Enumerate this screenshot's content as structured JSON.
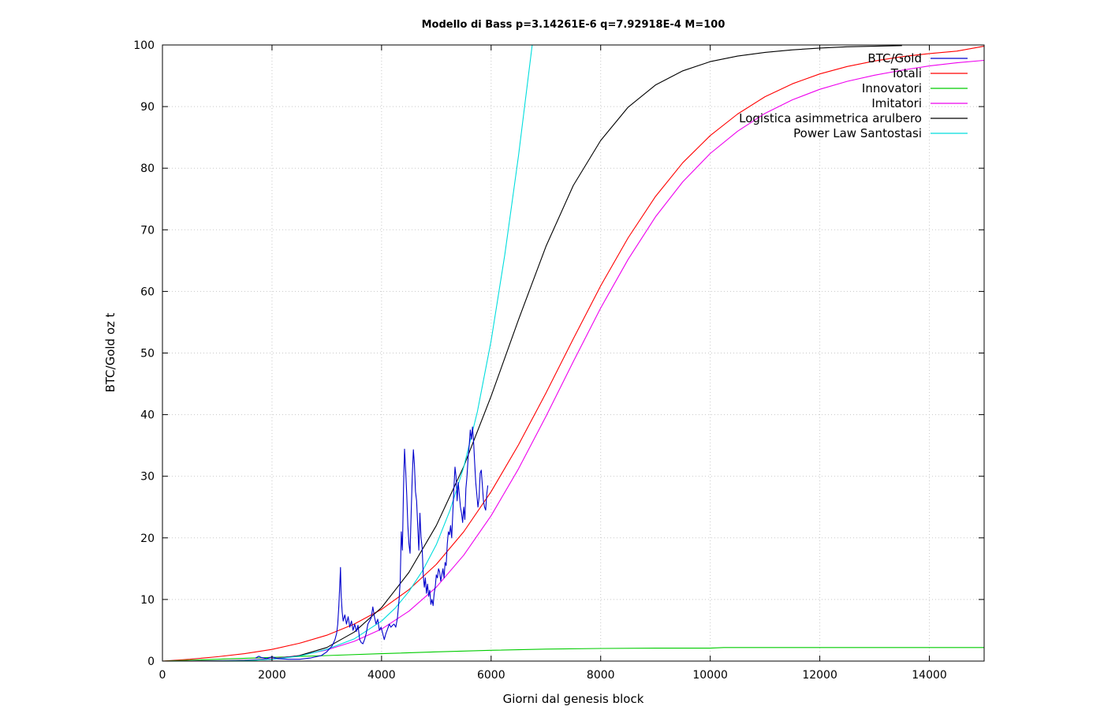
{
  "chart_data": {
    "type": "line",
    "title": "Modello di Bass p=3.14261E-6 q=7.92918E-4 M=100",
    "xlabel": "Giorni dal genesis block",
    "ylabel": "BTC/Gold oz t",
    "xlim": [
      0,
      15000
    ],
    "ylim": [
      0,
      100
    ],
    "xticks": [
      0,
      2000,
      4000,
      6000,
      8000,
      10000,
      12000,
      14000
    ],
    "yticks": [
      0,
      10,
      20,
      30,
      40,
      50,
      60,
      70,
      80,
      90,
      100
    ],
    "grid": true,
    "legend_position": "top-right",
    "series": [
      {
        "name": "BTC/Gold",
        "color": "#0000cc",
        "x": [
          1700,
          1760,
          1800,
          1900,
          2000,
          2100,
          2300,
          2500,
          2700,
          2900,
          3000,
          3050,
          3100,
          3150,
          3180,
          3200,
          3220,
          3240,
          3250,
          3260,
          3280,
          3300,
          3330,
          3360,
          3390,
          3420,
          3450,
          3480,
          3510,
          3540,
          3570,
          3600,
          3630,
          3660,
          3690,
          3720,
          3750,
          3780,
          3810,
          3840,
          3870,
          3900,
          3930,
          3960,
          3990,
          4020,
          4050,
          4080,
          4110,
          4140,
          4170,
          4200,
          4230,
          4260,
          4290,
          4320,
          4340,
          4360,
          4380,
          4400,
          4420,
          4440,
          4460,
          4480,
          4500,
          4520,
          4540,
          4560,
          4580,
          4600,
          4620,
          4640,
          4660,
          4680,
          4700,
          4720,
          4740,
          4760,
          4780,
          4800,
          4820,
          4840,
          4860,
          4880,
          4900,
          4920,
          4940,
          4960,
          4980,
          5000,
          5020,
          5040,
          5060,
          5080,
          5100,
          5120,
          5140,
          5160,
          5180,
          5200,
          5220,
          5240,
          5260,
          5280,
          5300,
          5320,
          5340,
          5360,
          5380,
          5400,
          5420,
          5440,
          5460,
          5480,
          5500,
          5520,
          5540,
          5560,
          5580,
          5600,
          5620,
          5640,
          5660,
          5680,
          5700,
          5720,
          5740,
          5760,
          5780,
          5800,
          5820,
          5840,
          5860,
          5880,
          5900,
          5920,
          5940
        ],
        "y": [
          0.5,
          0.8,
          0.6,
          0.4,
          0.7,
          0.4,
          0.3,
          0.3,
          0.5,
          0.9,
          1.5,
          2.0,
          2.5,
          3.5,
          4.5,
          6.0,
          9.0,
          13.0,
          15.2,
          11.0,
          8.0,
          6.5,
          7.5,
          6.0,
          7.2,
          5.5,
          6.5,
          5.0,
          6.0,
          4.8,
          5.8,
          3.5,
          3.0,
          2.8,
          3.5,
          4.5,
          6.0,
          6.5,
          7.0,
          8.8,
          7.2,
          6.0,
          6.8,
          5.0,
          5.5,
          4.5,
          3.5,
          4.5,
          5.2,
          6.0,
          5.5,
          5.8,
          6.0,
          5.5,
          7.0,
          10.0,
          13.0,
          21.0,
          18.0,
          28.0,
          34.4,
          31.0,
          27.0,
          22.0,
          19.0,
          17.5,
          24.0,
          30.0,
          34.3,
          32.0,
          27.5,
          26.0,
          22.0,
          18.0,
          24.0,
          20.0,
          18.5,
          14.0,
          12.0,
          13.5,
          11.0,
          12.5,
          10.5,
          11.5,
          9.2,
          10.0,
          9.0,
          11.0,
          12.0,
          14.0,
          13.5,
          15.0,
          14.5,
          13.0,
          14.0,
          15.0,
          13.5,
          16.0,
          15.5,
          19.0,
          21.0,
          20.5,
          22.0,
          20.0,
          24.0,
          28.0,
          31.5,
          30.0,
          26.0,
          29.0,
          27.0,
          25.0,
          24.0,
          22.5,
          25.0,
          23.0,
          28.0,
          30.0,
          33.0,
          35.0,
          37.5,
          36.0,
          38.0,
          35.5,
          32.0,
          29.0,
          27.0,
          25.0,
          26.5,
          30.5,
          31.0,
          28.5,
          26.0,
          25.0,
          24.5,
          27.0,
          28.5
        ],
        "_note": "noisy observed data; values read approximately from the plot"
      },
      {
        "name": "Totali",
        "color": "#ff0000",
        "x": [
          0,
          500,
          1000,
          1500,
          2000,
          2500,
          3000,
          3500,
          4000,
          4500,
          5000,
          5500,
          6000,
          6500,
          7000,
          7500,
          8000,
          8500,
          9000,
          9500,
          10000,
          10500,
          11000,
          11500,
          12000,
          12500,
          13000,
          13500,
          14000,
          14500,
          15000
        ],
        "y": [
          0,
          0.3,
          0.7,
          1.2,
          1.9,
          2.9,
          4.2,
          6.0,
          8.4,
          11.6,
          15.7,
          21.0,
          27.5,
          35.1,
          43.5,
          52.3,
          60.9,
          68.7,
          75.4,
          80.9,
          85.3,
          88.8,
          91.6,
          93.7,
          95.3,
          96.5,
          97.4,
          98.1,
          98.6,
          99.0,
          99.8
        ]
      },
      {
        "name": "Innovatori",
        "color": "#00cc00",
        "x": [
          0,
          1000,
          2000,
          3000,
          4000,
          5000,
          6000,
          7000,
          8000,
          9000,
          10000,
          10250,
          11000,
          12000,
          13000,
          14000,
          15000
        ],
        "y": [
          0,
          0.3,
          0.6,
          0.9,
          1.2,
          1.5,
          1.75,
          1.95,
          2.05,
          2.1,
          2.1,
          2.2,
          2.2,
          2.2,
          2.2,
          2.2,
          2.2
        ]
      },
      {
        "name": "Imitatori",
        "color": "#ee00ee",
        "x": [
          0,
          500,
          1000,
          1500,
          2000,
          2500,
          3000,
          3500,
          4000,
          4500,
          5000,
          5500,
          6000,
          6500,
          7000,
          7500,
          8000,
          8500,
          9000,
          9500,
          10000,
          10500,
          11000,
          11500,
          12000,
          12500,
          13000,
          13500,
          14000,
          14500,
          15000
        ],
        "y": [
          0,
          0.01,
          0.05,
          0.15,
          0.4,
          0.9,
          1.8,
          3.2,
          5.2,
          8.1,
          12.0,
          17.2,
          23.6,
          31.2,
          39.7,
          48.6,
          57.3,
          65.2,
          72.1,
          77.8,
          82.4,
          86.0,
          88.9,
          91.1,
          92.8,
          94.1,
          95.1,
          95.9,
          96.6,
          97.1,
          97.5
        ]
      },
      {
        "name": "Logistica asimmetrica arulbero",
        "color": "#000000",
        "x": [
          0,
          500,
          1000,
          1500,
          2000,
          2500,
          3000,
          3500,
          4000,
          4500,
          5000,
          5500,
          6000,
          6500,
          7000,
          7500,
          8000,
          8500,
          9000,
          9500,
          10000,
          10500,
          11000,
          11500,
          12000,
          12500,
          13000,
          13500
        ],
        "y": [
          0,
          0.0,
          0.02,
          0.1,
          0.3,
          0.9,
          2.2,
          4.7,
          8.7,
          14.4,
          22.0,
          31.6,
          43.0,
          55.4,
          67.3,
          77.2,
          84.5,
          89.9,
          93.5,
          95.8,
          97.3,
          98.2,
          98.8,
          99.2,
          99.5,
          99.7,
          99.8,
          99.9
        ]
      },
      {
        "name": "Power Law Santostasi",
        "color": "#00dddd",
        "x": [
          0,
          500,
          1000,
          1500,
          2000,
          2500,
          3000,
          3500,
          4000,
          4250,
          4500,
          4750,
          5000,
          5250,
          5500,
          5750,
          6000,
          6250,
          6500,
          6750
        ],
        "y": [
          0,
          0.0,
          0.02,
          0.08,
          0.3,
          0.8,
          1.9,
          3.6,
          6.5,
          8.6,
          11.3,
          14.7,
          18.9,
          24.5,
          31.5,
          40.5,
          52.0,
          66.0,
          82.0,
          100.0
        ]
      }
    ]
  }
}
